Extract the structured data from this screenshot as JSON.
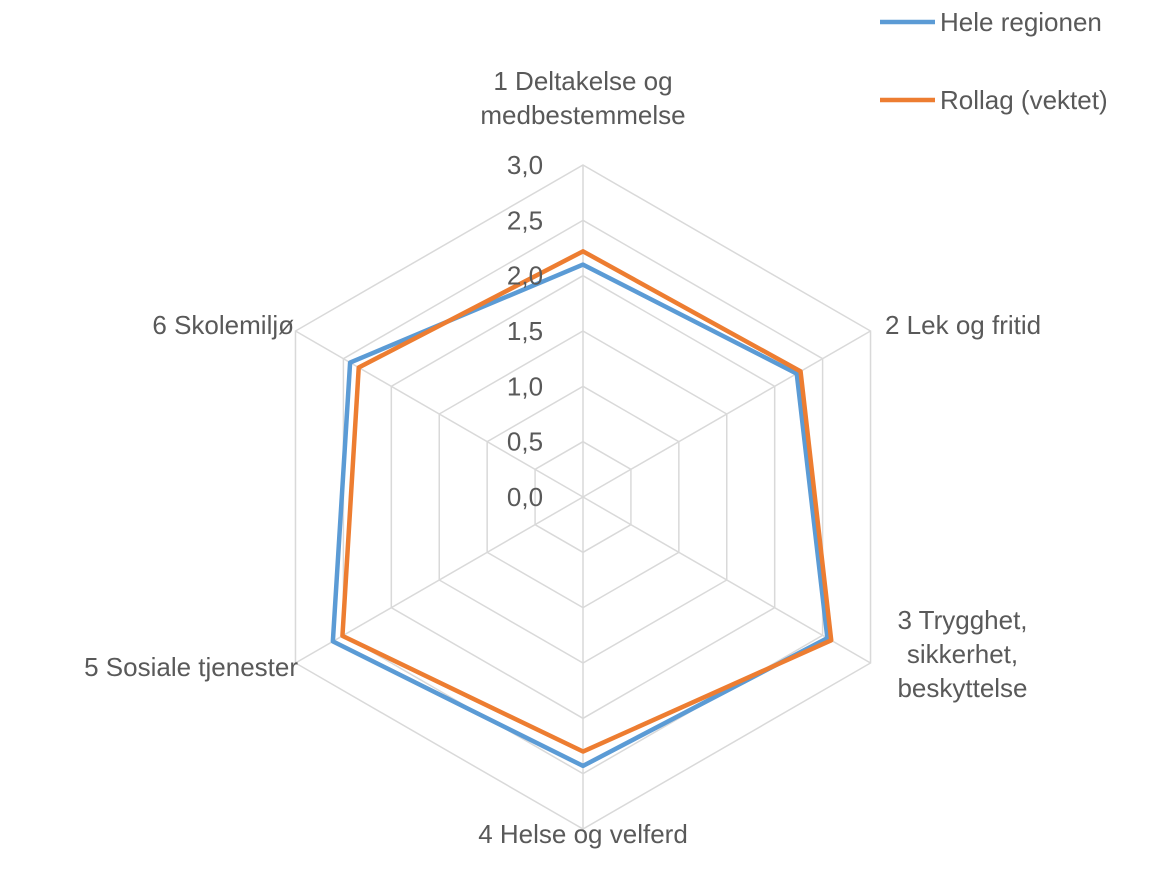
{
  "chart_data": {
    "type": "radar",
    "categories": [
      "1 Deltakelse og medbestemmelse",
      "2 Lek og fritid",
      "3 Trygghet, sikkerhet, beskyttelse",
      "4 Helse og velferd",
      "5 Sosiale tjenester",
      "6 Skolemiljø"
    ],
    "series": [
      {
        "name": "Hele regionen",
        "color": "#5b9bd5",
        "values": [
          2.1,
          2.23,
          2.55,
          2.43,
          2.61,
          2.43
        ]
      },
      {
        "name": "Rollag (vektet)",
        "color": "#ed7d31",
        "values": [
          2.22,
          2.27,
          2.59,
          2.3,
          2.51,
          2.34
        ]
      }
    ],
    "ylim": [
      0,
      3
    ],
    "yticks": [
      {
        "value": 0,
        "label": "0,0"
      },
      {
        "value": 0.5,
        "label": "0,5"
      },
      {
        "value": 1,
        "label": "1,0"
      },
      {
        "value": 1.5,
        "label": "1,5"
      },
      {
        "value": 2,
        "label": "2,0"
      },
      {
        "value": 2.5,
        "label": "2,5"
      },
      {
        "value": 3,
        "label": "3,0"
      }
    ],
    "grid": true,
    "legend": "top-right"
  }
}
